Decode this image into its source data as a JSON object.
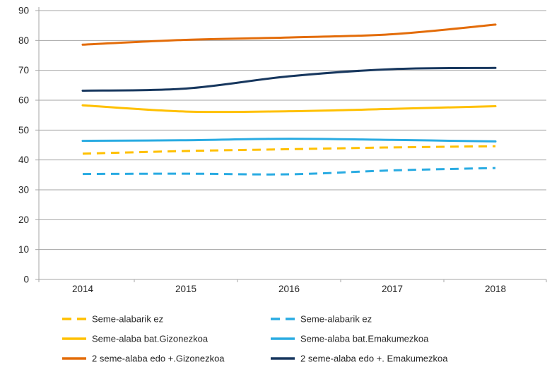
{
  "chart_data": {
    "type": "line",
    "categories": [
      "2014",
      "2015",
      "2016",
      "2017",
      "2018"
    ],
    "series": [
      {
        "name": "Seme-alabarik ez",
        "color": "#FFC000",
        "style": "dashed",
        "values": [
          42.1,
          43.0,
          43.6,
          44.2,
          44.6
        ]
      },
      {
        "name": "Seme-alaba bat.Gizonezkoa",
        "color": "#FFC000",
        "style": "solid",
        "values": [
          58.3,
          56.2,
          56.3,
          57.1,
          58.0
        ]
      },
      {
        "name": "2 seme-alaba edo +.Gizonezkoa",
        "color": "#E36C09",
        "style": "solid",
        "values": [
          78.6,
          80.2,
          81.0,
          82.1,
          85.3
        ]
      },
      {
        "name": "Seme-alabarik ez",
        "color": "#29ABE2",
        "style": "dashed",
        "values": [
          35.3,
          35.4,
          35.2,
          36.5,
          37.3
        ]
      },
      {
        "name": "Seme-alaba bat.Emakumezkoa",
        "color": "#29ABE2",
        "style": "solid",
        "values": [
          46.4,
          46.6,
          47.1,
          46.7,
          46.2
        ]
      },
      {
        "name": "2 seme-alaba edo +. Emakumezkoa",
        "color": "#17375E",
        "style": "solid",
        "values": [
          63.2,
          63.9,
          68.0,
          70.4,
          70.8
        ]
      }
    ],
    "title": "",
    "xlabel": "",
    "ylabel": "",
    "ylim": [
      0,
      90
    ],
    "ytick_step": 10,
    "grid": true,
    "line_smoothing": true,
    "legend_position": "bottom",
    "legend_columns": 2
  },
  "axes": {
    "y_tick_labels": [
      "0",
      "10",
      "20",
      "30",
      "40",
      "50",
      "60",
      "70",
      "80",
      "90"
    ],
    "x_tick_labels": [
      "2014",
      "2015",
      "2016",
      "2017",
      "2018"
    ]
  },
  "colors": {
    "gridline": "#A6A6A6",
    "axis": "#A6A6A6",
    "text": "#262626",
    "background": "#FFFFFF"
  }
}
